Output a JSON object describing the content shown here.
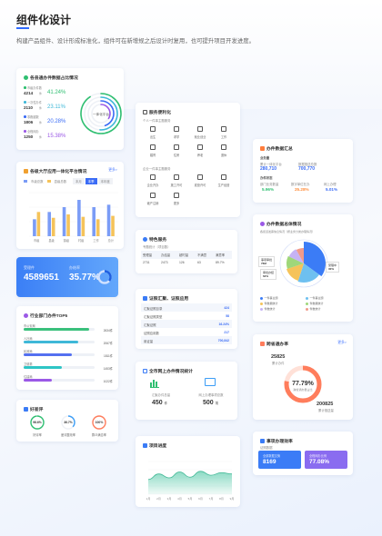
{
  "header": {
    "title": "组件化设计",
    "description": "构建产品组件、设计形成标准化，组件可在新增规之后设计时复用，也可提升项目开发进度。"
  },
  "card_ratio": {
    "title": "各县通办件数据占比情况",
    "rows": [
      {
        "label": "市级办件数",
        "value": "4214",
        "unit": "件",
        "pct": "41.24%",
        "color": "#2fbf71"
      },
      {
        "label": "一次性办件",
        "value": "2110",
        "unit": "件",
        "pct": "23.11%",
        "color": "#3fb8d8"
      },
      {
        "label": "零跑腿数",
        "value": "1806",
        "unit": "件",
        "pct": "20.28%",
        "color": "#3b6cf6"
      },
      {
        "label": "全程网办",
        "value": "1250",
        "unit": "件",
        "pct": "15.38%",
        "color": "#9b59e6"
      }
    ],
    "center_label": "一体化平台"
  },
  "card_platform": {
    "title": "各级大厅应用一体化平台情况",
    "more": "更多>",
    "legend": [
      "市级总数",
      "县级总数"
    ],
    "tabs": [
      "本月",
      "本季",
      "本年度"
    ],
    "chart_data": {
      "type": "bar",
      "categories": [
        "市级",
        "县级",
        "镇级",
        "村级",
        "工作",
        "总计"
      ],
      "series": [
        {
          "name": "市级总数",
          "values": [
            3.5,
            5,
            6,
            7.5,
            6,
            6.5
          ]
        },
        {
          "name": "县级总数",
          "values": [
            5,
            3.8,
            4.5,
            4,
            3.5,
            4.2
          ]
        }
      ],
      "ylim": [
        0,
        9
      ]
    }
  },
  "card_blue": {
    "label1": "受理件",
    "value1": "4589651",
    "label2": "办结率",
    "value2": "35.77%",
    "ring_pct": 35.77
  },
  "card_dept": {
    "title": "行业部门办件TOP5",
    "rows": [
      {
        "name": "市公安局",
        "value": "2634件",
        "pct": 0.92,
        "color": "#3ac07c"
      },
      {
        "name": "人社局",
        "value": "2067件",
        "pct": 0.77,
        "color": "#3fb8d8"
      },
      {
        "name": "民政局",
        "value": "1811件",
        "pct": 0.68,
        "color": "#5470f0"
      },
      {
        "name": "卫健委",
        "value": "1453件",
        "pct": 0.54,
        "color": "#2ec5c5"
      },
      {
        "name": "住建局",
        "value": "1022件",
        "pct": 0.4,
        "color": "#9b59e6"
      }
    ]
  },
  "card_good": {
    "title": "好差评",
    "items": [
      {
        "label": "好评率",
        "value": "98.6%",
        "pct": 98.6,
        "color": "#2fbf71"
      },
      {
        "label": "差评整改率",
        "value": "36.7%",
        "pct": 36.7,
        "color": "#3b9df6"
      },
      {
        "label": "群众满意率",
        "value": "100%",
        "pct": 100,
        "color": "#ff7d5c"
      }
    ]
  },
  "card_service": {
    "title": "服务便利化",
    "sub1": "个人一件事主题服务",
    "grid1": [
      "出生",
      "求学",
      "就业创业",
      "工作",
      "婚育",
      "住房",
      "养老",
      "退休"
    ],
    "sub2": "企业一件事主题服务",
    "grid2": [
      "企业开办",
      "施工许可",
      "准营许可",
      "生产经营",
      "破产注销",
      "更多"
    ]
  },
  "card_special": {
    "title": "特色服务",
    "subtitle": "专题统计（项目数）",
    "headers": [
      "受理量",
      "办结量",
      "超时量",
      "不满意",
      "满意率"
    ],
    "values": [
      "2731",
      "2473",
      "126",
      "63",
      "89.7%"
    ]
  },
  "card_cert": {
    "title": "证照汇聚、证照应用",
    "rows": [
      {
        "label": "汇聚证照目录",
        "value": "424"
      },
      {
        "label": "汇聚证照类型",
        "value": "58"
      },
      {
        "label": "汇聚证照",
        "value": "16.24%"
      },
      {
        "label": "证照应用数",
        "value": "217"
      },
      {
        "label": "用证量",
        "value": "700,842"
      }
    ]
  },
  "card_online": {
    "title": "全市网上办件情况统计",
    "items": [
      {
        "label": "汇聚办件总量",
        "value": "450",
        "unit": "件"
      },
      {
        "label": "网上办理事项总数",
        "value": "500",
        "unit": "项"
      }
    ]
  },
  "card_progress": {
    "title": "项目进度",
    "chart_data": {
      "type": "area",
      "categories": [
        "1月",
        "2月",
        "3月",
        "4月",
        "5月",
        "6月",
        "7月",
        "8月",
        "9月"
      ],
      "values": [
        45,
        62,
        50,
        68,
        52,
        70,
        58,
        66,
        62
      ],
      "ylim": [
        0,
        100
      ]
    }
  },
  "card_summary": {
    "title": "办件数据汇总",
    "col1": "业务量",
    "v1a": "280,710",
    "l1a": "累计一体化平台",
    "v1b": "700,770",
    "l1b": "数据推送总数",
    "col2": "办件状态",
    "s1": "5.96%",
    "s1l": "部门业务数量",
    "s2": "25.28%",
    "s2l": "数字单位在办",
    "s3": "5.01%",
    "s3l": "网上办理"
  },
  "card_pie": {
    "title": "办件数据总体情况",
    "subtitle": "各街道发票信息情况（按业务分类办理情况）",
    "tag1": "事项审批",
    "tag1v": "76M",
    "tag2": "审批办结",
    "tag2v": "62%",
    "tag3": "受理中",
    "tag3v": "30%",
    "legend": [
      "一件事主题",
      "一件事主题",
      "件数据统计",
      "件数据统计",
      "件数统计",
      "件数统计"
    ],
    "chart_data": {
      "type": "pie",
      "values": [
        35,
        20,
        15,
        12,
        10,
        8
      ]
    }
  },
  "card_rate": {
    "title": "跨省通办率",
    "more": "更多>",
    "top_value": "25825",
    "top_label": "累计办件",
    "pct": "77.79%",
    "pct_label": "跨省通办量占比",
    "bottom_value": "200825",
    "bottom_label": "累计推送量",
    "ring_pct": 77.79
  },
  "card_exchange": {
    "title": "事项办理效率",
    "sub": "证照数据",
    "boxes": [
      {
        "label": "全部数据交换",
        "value": "8169",
        "color": "#3b7cf6"
      },
      {
        "label": "全程网办比例",
        "value": "77.08%",
        "color": "#8a6cf0"
      }
    ]
  }
}
